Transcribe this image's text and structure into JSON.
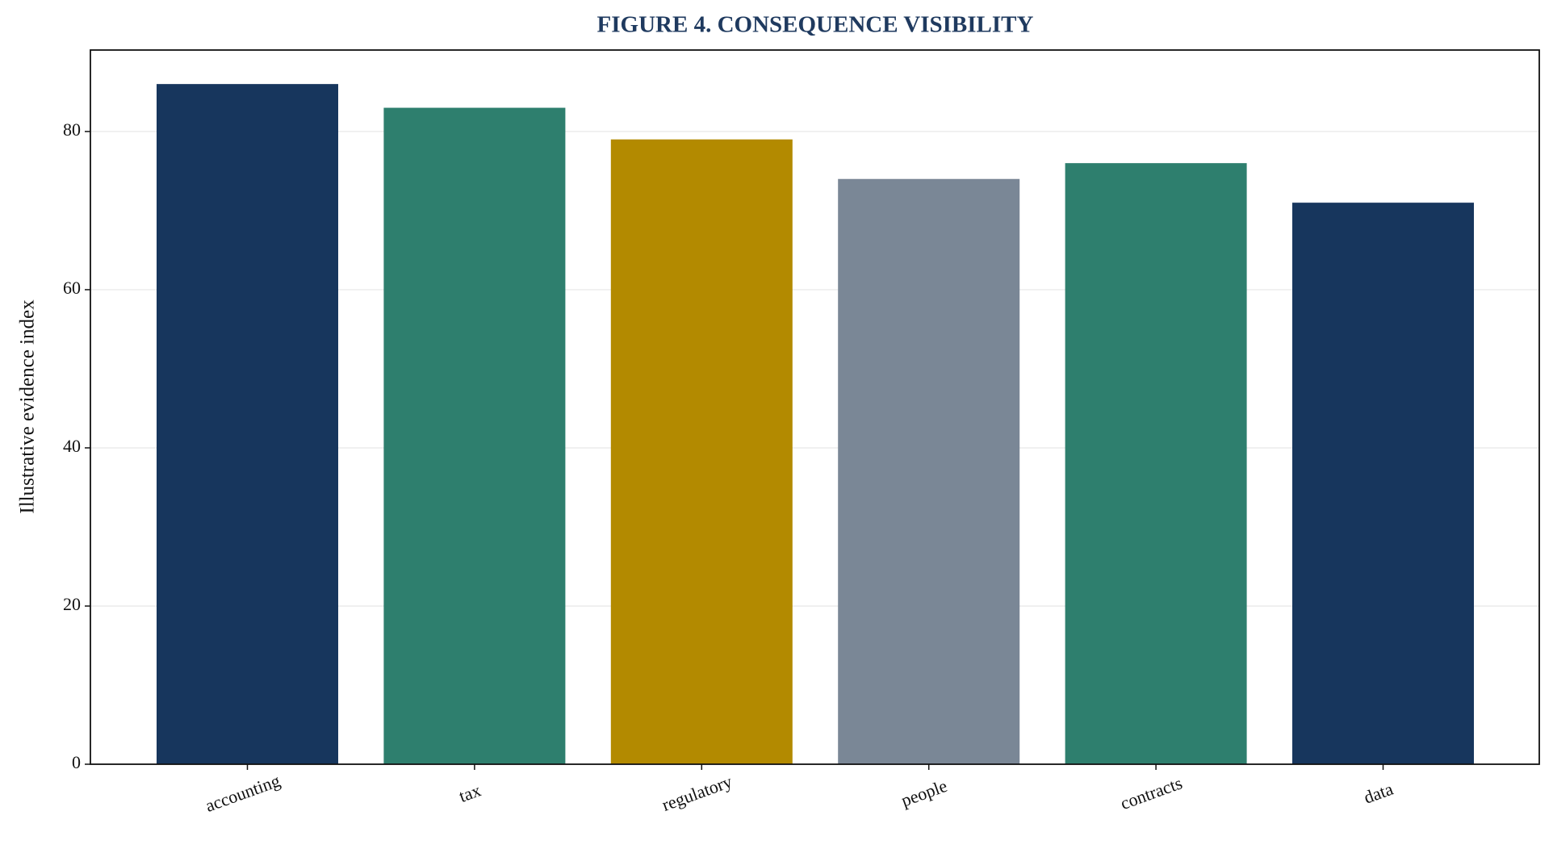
{
  "chart_data": {
    "type": "bar",
    "title": "FIGURE 4. CONSEQUENCE VISIBILITY",
    "ylabel": "Illustrative evidence index",
    "categories": [
      "accounting",
      "tax",
      "regulatory",
      "people",
      "contracts",
      "data"
    ],
    "values": [
      86,
      83,
      79,
      74,
      76,
      71
    ],
    "colors": [
      "#17365d",
      "#2e7f6e",
      "#b38a00",
      "#7a8796",
      "#2e7f6e",
      "#17365d"
    ],
    "ylim": [
      0,
      90.3
    ],
    "yticks": [
      0,
      20,
      40,
      60,
      80
    ],
    "grid": true
  }
}
